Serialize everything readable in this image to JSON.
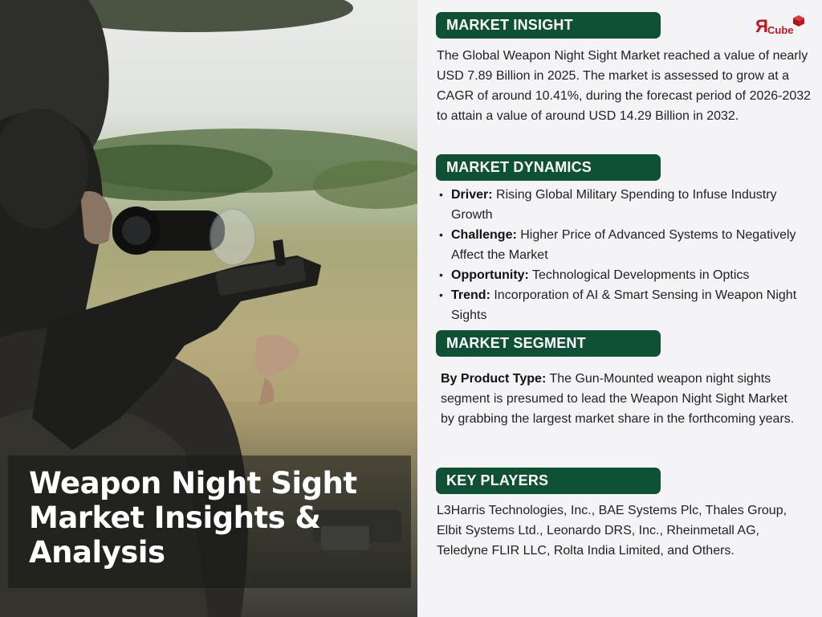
{
  "hero": {
    "title_lines": [
      "Weapon Night Sight",
      "Market Insights &",
      "Analysis"
    ]
  },
  "logo": {
    "letter": "R",
    "text": "Cube",
    "color": "#c0171f"
  },
  "brand_green": "#0f5135",
  "market_insight": {
    "heading": "MARKET INSIGHT",
    "text": "The Global Weapon Night Sight Market reached a value of nearly USD 7.89 Billion in 2025. The market is assessed to grow at a CAGR of around 10.41%, during the forecast period of 2026-2032 to attain a value of around USD 14.29 Billion in 2032."
  },
  "market_dynamics": {
    "heading": "MARKET DYNAMICS",
    "items": [
      {
        "label": "Driver:",
        "text": "Rising Global Military Spending to Infuse Industry Growth"
      },
      {
        "label": "Challenge:",
        "text": "Higher Price of Advanced Systems to Negatively Affect the Market"
      },
      {
        "label": "Opportunity:",
        "text": "Technological Developments in Optics"
      },
      {
        "label": "Trend:",
        "text": "Incorporation of AI & Smart Sensing in Weapon Night Sights"
      }
    ]
  },
  "market_segment": {
    "heading": "MARKET SEGMENT",
    "label": "By Product Type:",
    "text": "The Gun-Mounted weapon night sights segment is presumed to lead the Weapon Night Sight Market by grabbing the largest market share in the forthcoming years."
  },
  "key_players": {
    "heading": "KEY PLAYERS",
    "text": "L3Harris Technologies, Inc., BAE Systems Plc, Thales Group, Elbit Systems Ltd., Leonardo DRS, Inc., Rheinmetall AG, Teledyne FLIR LLC, Rolta India Limited, and Others."
  }
}
